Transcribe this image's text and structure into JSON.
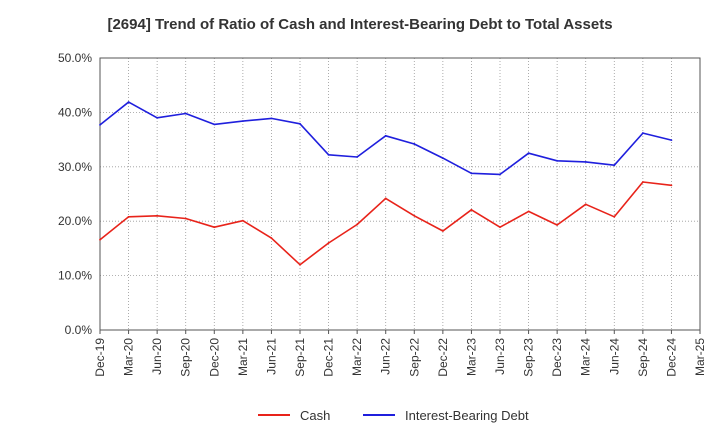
{
  "chart_data": {
    "type": "line",
    "title": "[2694]  Trend of Ratio of Cash and Interest-Bearing Debt to Total Assets",
    "xlabel": "",
    "ylabel": "",
    "categories": [
      "Dec-19",
      "Mar-20",
      "Jun-20",
      "Sep-20",
      "Dec-20",
      "Mar-21",
      "Jun-21",
      "Sep-21",
      "Dec-21",
      "Mar-22",
      "Jun-22",
      "Sep-22",
      "Dec-22",
      "Mar-23",
      "Jun-23",
      "Sep-23",
      "Dec-23",
      "Mar-24",
      "Jun-24",
      "Sep-24",
      "Dec-24",
      "Mar-25"
    ],
    "ylim": [
      0,
      50
    ],
    "yticks": [
      "0.0%",
      "10.0%",
      "20.0%",
      "30.0%",
      "40.0%",
      "50.0%"
    ],
    "grid": true,
    "legend_position": "bottom",
    "series": [
      {
        "name": "Cash",
        "color": "#e8231a",
        "values": [
          16.6,
          20.8,
          21.0,
          20.5,
          18.9,
          20.1,
          16.9,
          12.0,
          16.0,
          19.4,
          24.2,
          21.0,
          18.2,
          22.1,
          18.9,
          21.8,
          19.3,
          23.1,
          20.8,
          27.2,
          26.6,
          null
        ]
      },
      {
        "name": "Interest-Bearing Debt",
        "color": "#1f1fdd",
        "values": [
          37.7,
          41.9,
          39.0,
          39.8,
          37.8,
          38.4,
          38.9,
          37.9,
          32.2,
          31.8,
          35.7,
          34.2,
          31.6,
          28.8,
          28.6,
          32.5,
          31.1,
          30.9,
          30.3,
          36.2,
          34.9,
          null
        ]
      }
    ]
  }
}
